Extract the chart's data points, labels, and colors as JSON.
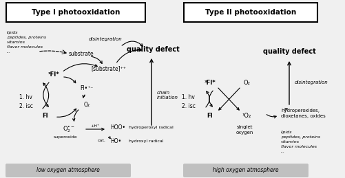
{
  "bg_color": "#f0f0f0",
  "title1": "Type I photooxidation",
  "title2": "Type II photooxidation",
  "label_low": "low oxygen atmosphere",
  "label_high": "high oxygen atmosphere",
  "quality_defect": "quality defect",
  "chain_initiation": "chain\ninitiation",
  "disintegration": "disintegration",
  "substrate": "substrate",
  "substrate_ion": "[substrate]⁺⁺",
  "fl_triplet": "³Fl*",
  "fl_radical": "Fl•⁺⁻",
  "fl": "Fl",
  "o2": "O₂",
  "o2_radical_label": "O₂•⁻",
  "superoxide": "superoxide",
  "hoo": "HOO•",
  "ho": "HO•",
  "hydroperoxyl": "hydroperoxyl radical",
  "hydroxyl": "hydroxyl radical",
  "plus_h": "+H⁺",
  "cat": "cat.",
  "lipids1": "lipids\npeptides, proteins\nvitamins\nflavor molecules\n...",
  "hv_isc": "1. hv\n2. isc",
  "fl_triplet2": "³Fl*",
  "o2_2": "O₂",
  "fl2": "Fl",
  "singlet_o2": "¹O₂",
  "singlet_oxygen": "singlet\noxygen",
  "quality_defect2": "quality defect",
  "disintegration2": "disintegration",
  "hydroperoxides": "hydroperoxides,\ndioxetanes, oxides",
  "lipids2": "lipids\npeptides, proteins\nvitamins\nflavor molecules\n...",
  "hv_isc2": "1. hv\n2. isc"
}
